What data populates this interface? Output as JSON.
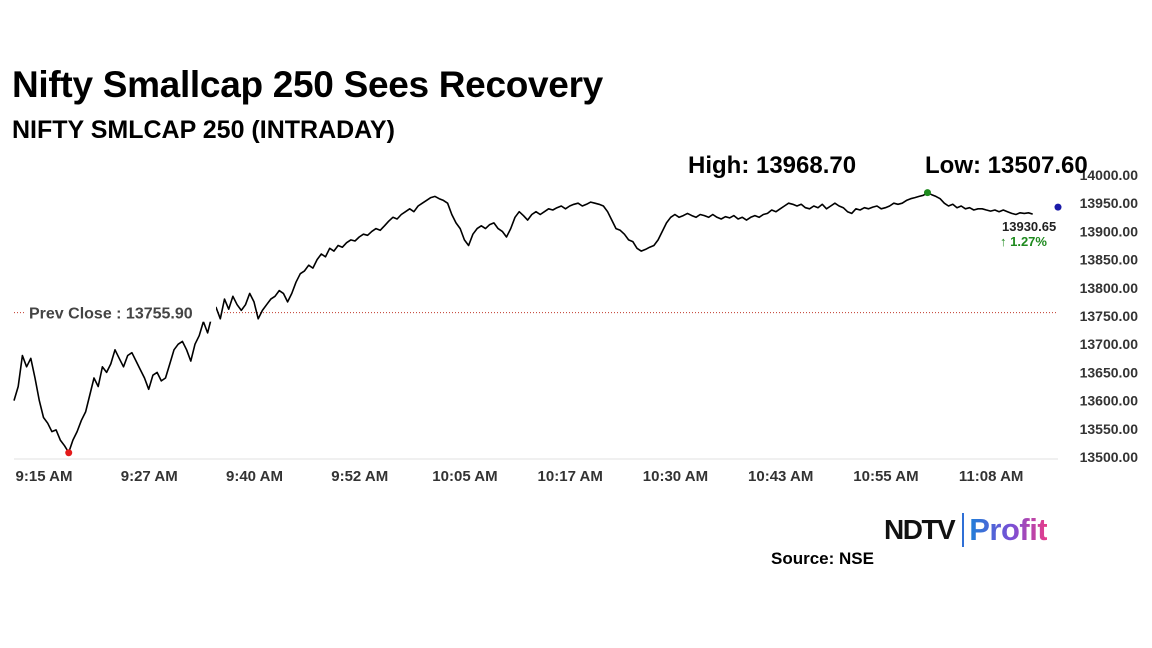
{
  "chart_data": {
    "type": "line",
    "title": "Nifty Smallcap 250 Sees Recovery",
    "subtitle": "NIFTY SMLCAP 250 (INTRADAY)",
    "high_label": "High: 13968.70",
    "low_label": "Low: 13507.60",
    "high": 13968.7,
    "low": 13507.6,
    "prev_close": 13755.9,
    "prev_close_label": "Prev Close : 13755.90",
    "last_value": 13930.65,
    "last_value_label": "13930.65",
    "change_label": "↑ 1.27%",
    "ylim": [
      13500,
      14000
    ],
    "yticks": [
      "13500.00",
      "13550.00",
      "13600.00",
      "13650.00",
      "13700.00",
      "13750.00",
      "13800.00",
      "13850.00",
      "13900.00",
      "13950.00",
      "14000.00"
    ],
    "xticks": [
      "9:15 AM",
      "9:27 AM",
      "9:40 AM",
      "9:52 AM",
      "10:05 AM",
      "10:17 AM",
      "10:30 AM",
      "10:43 AM",
      "10:55 AM",
      "11:08 AM"
    ],
    "x_start": 0,
    "x_end": 124,
    "points": [
      [
        0,
        13600
      ],
      [
        0.5,
        13625
      ],
      [
        1,
        13680
      ],
      [
        1.5,
        13660
      ],
      [
        2,
        13675
      ],
      [
        2.5,
        13640
      ],
      [
        3,
        13600
      ],
      [
        3.5,
        13570
      ],
      [
        4,
        13560
      ],
      [
        4.5,
        13545
      ],
      [
        5,
        13548
      ],
      [
        5.5,
        13530
      ],
      [
        6,
        13520
      ],
      [
        6.5,
        13508
      ],
      [
        7,
        13530
      ],
      [
        7.5,
        13545
      ],
      [
        8,
        13565
      ],
      [
        8.5,
        13580
      ],
      [
        9,
        13610
      ],
      [
        9.5,
        13640
      ],
      [
        10,
        13625
      ],
      [
        10.5,
        13660
      ],
      [
        11,
        13650
      ],
      [
        11.5,
        13665
      ],
      [
        12,
        13690
      ],
      [
        12.5,
        13675
      ],
      [
        13,
        13660
      ],
      [
        13.5,
        13680
      ],
      [
        14,
        13685
      ],
      [
        14.5,
        13670
      ],
      [
        15,
        13655
      ],
      [
        15.5,
        13640
      ],
      [
        16,
        13620
      ],
      [
        16.5,
        13645
      ],
      [
        17,
        13650
      ],
      [
        17.5,
        13635
      ],
      [
        18,
        13640
      ],
      [
        18.5,
        13665
      ],
      [
        19,
        13690
      ],
      [
        19.5,
        13700
      ],
      [
        20,
        13705
      ],
      [
        20.5,
        13690
      ],
      [
        21,
        13670
      ],
      [
        21.5,
        13700
      ],
      [
        22,
        13715
      ],
      [
        22.5,
        13740
      ],
      [
        23,
        13720
      ],
      [
        23.5,
        13750
      ],
      [
        24,
        13765
      ],
      [
        24.5,
        13745
      ],
      [
        25,
        13780
      ],
      [
        25.5,
        13762
      ],
      [
        26,
        13785
      ],
      [
        26.5,
        13770
      ],
      [
        27,
        13760
      ],
      [
        27.5,
        13770
      ],
      [
        28,
        13790
      ],
      [
        28.5,
        13775
      ],
      [
        29,
        13745
      ],
      [
        29.5,
        13760
      ],
      [
        30,
        13770
      ],
      [
        30.5,
        13780
      ],
      [
        31,
        13785
      ],
      [
        31.5,
        13795
      ],
      [
        32,
        13790
      ],
      [
        32.5,
        13775
      ],
      [
        33,
        13790
      ],
      [
        33.5,
        13810
      ],
      [
        34,
        13825
      ],
      [
        34.5,
        13830
      ],
      [
        35,
        13840
      ],
      [
        35.5,
        13835
      ],
      [
        36,
        13850
      ],
      [
        36.5,
        13860
      ],
      [
        37,
        13855
      ],
      [
        37.5,
        13870
      ],
      [
        38,
        13865
      ],
      [
        38.5,
        13875
      ],
      [
        39,
        13872
      ],
      [
        39.5,
        13880
      ],
      [
        40,
        13885
      ],
      [
        40.5,
        13883
      ],
      [
        41,
        13890
      ],
      [
        41.5,
        13895
      ],
      [
        42,
        13893
      ],
      [
        42.5,
        13900
      ],
      [
        43,
        13905
      ],
      [
        43.5,
        13902
      ],
      [
        44,
        13910
      ],
      [
        44.5,
        13918
      ],
      [
        45,
        13925
      ],
      [
        45.5,
        13922
      ],
      [
        46,
        13930
      ],
      [
        46.5,
        13935
      ],
      [
        47,
        13940
      ],
      [
        47.5,
        13935
      ],
      [
        48,
        13945
      ],
      [
        48.5,
        13950
      ],
      [
        49,
        13955
      ],
      [
        49.5,
        13960
      ],
      [
        50,
        13962
      ],
      [
        50.5,
        13958
      ],
      [
        51,
        13955
      ],
      [
        51.5,
        13950
      ],
      [
        52,
        13930
      ],
      [
        52.5,
        13915
      ],
      [
        53,
        13905
      ],
      [
        53.5,
        13885
      ],
      [
        54,
        13875
      ],
      [
        54.5,
        13895
      ],
      [
        55,
        13905
      ],
      [
        55.5,
        13910
      ],
      [
        56,
        13905
      ],
      [
        56.5,
        13912
      ],
      [
        57,
        13915
      ],
      [
        57.5,
        13905
      ],
      [
        58,
        13900
      ],
      [
        58.5,
        13890
      ],
      [
        59,
        13905
      ],
      [
        59.5,
        13925
      ],
      [
        60,
        13935
      ],
      [
        60.5,
        13928
      ],
      [
        61,
        13920
      ],
      [
        61.5,
        13930
      ],
      [
        62,
        13935
      ],
      [
        62.5,
        13930
      ],
      [
        63,
        13935
      ],
      [
        63.5,
        13940
      ],
      [
        64,
        13938
      ],
      [
        64.5,
        13942
      ],
      [
        65,
        13945
      ],
      [
        65.5,
        13940
      ],
      [
        66,
        13945
      ],
      [
        66.5,
        13948
      ],
      [
        67,
        13950
      ],
      [
        67.5,
        13945
      ],
      [
        68,
        13948
      ],
      [
        68.5,
        13952
      ],
      [
        69,
        13950
      ],
      [
        69.5,
        13948
      ],
      [
        70,
        13945
      ],
      [
        70.5,
        13935
      ],
      [
        71,
        13920
      ],
      [
        71.5,
        13905
      ],
      [
        72,
        13902
      ],
      [
        72.5,
        13895
      ],
      [
        73,
        13885
      ],
      [
        73.5,
        13882
      ],
      [
        74,
        13870
      ],
      [
        74.5,
        13865
      ],
      [
        75,
        13868
      ],
      [
        75.5,
        13872
      ],
      [
        76,
        13875
      ],
      [
        76.5,
        13885
      ],
      [
        77,
        13900
      ],
      [
        77.5,
        13915
      ],
      [
        78,
        13925
      ],
      [
        78.5,
        13930
      ],
      [
        79,
        13925
      ],
      [
        79.5,
        13928
      ],
      [
        80,
        13932
      ],
      [
        80.5,
        13928
      ],
      [
        81,
        13925
      ],
      [
        81.5,
        13930
      ],
      [
        82,
        13928
      ],
      [
        82.5,
        13925
      ],
      [
        83,
        13930
      ],
      [
        83.5,
        13925
      ],
      [
        84,
        13922
      ],
      [
        84.5,
        13926
      ],
      [
        85,
        13924
      ],
      [
        85.5,
        13928
      ],
      [
        86,
        13922
      ],
      [
        86.5,
        13925
      ],
      [
        87,
        13920
      ],
      [
        87.5,
        13925
      ],
      [
        88,
        13928
      ],
      [
        88.5,
        13925
      ],
      [
        89,
        13930
      ],
      [
        89.5,
        13932
      ],
      [
        90,
        13938
      ],
      [
        90.5,
        13935
      ],
      [
        91,
        13940
      ],
      [
        91.5,
        13945
      ],
      [
        92,
        13950
      ],
      [
        92.5,
        13948
      ],
      [
        93,
        13945
      ],
      [
        93.5,
        13948
      ],
      [
        94,
        13942
      ],
      [
        94.5,
        13940
      ],
      [
        95,
        13945
      ],
      [
        95.5,
        13942
      ],
      [
        96,
        13948
      ],
      [
        96.5,
        13940
      ],
      [
        97,
        13945
      ],
      [
        97.5,
        13950
      ],
      [
        98,
        13945
      ],
      [
        98.5,
        13942
      ],
      [
        99,
        13935
      ],
      [
        99.5,
        13932
      ],
      [
        100,
        13940
      ],
      [
        100.5,
        13938
      ],
      [
        101,
        13942
      ],
      [
        101.5,
        13940
      ],
      [
        102,
        13943
      ],
      [
        102.5,
        13945
      ],
      [
        103,
        13940
      ],
      [
        103.5,
        13942
      ],
      [
        104,
        13945
      ],
      [
        104.5,
        13950
      ],
      [
        105,
        13948
      ],
      [
        105.5,
        13950
      ],
      [
        106,
        13955
      ],
      [
        106.5,
        13958
      ],
      [
        107,
        13960
      ],
      [
        107.5,
        13962
      ],
      [
        108,
        13964
      ],
      [
        108.5,
        13968.7
      ],
      [
        109,
        13965
      ],
      [
        109.5,
        13962
      ],
      [
        110,
        13958
      ],
      [
        110.5,
        13950
      ],
      [
        111,
        13945
      ],
      [
        111.5,
        13948
      ],
      [
        112,
        13942
      ],
      [
        112.5,
        13945
      ],
      [
        113,
        13940
      ],
      [
        113.5,
        13942
      ],
      [
        114,
        13938
      ],
      [
        114.5,
        13940
      ],
      [
        115,
        13940
      ],
      [
        115.5,
        13938
      ],
      [
        116,
        13936
      ],
      [
        116.5,
        13938
      ],
      [
        117,
        13935
      ],
      [
        117.5,
        13938
      ],
      [
        118,
        13935
      ],
      [
        118.5,
        13932
      ],
      [
        119,
        13930
      ],
      [
        119.5,
        13933
      ],
      [
        120,
        13932
      ],
      [
        120.5,
        13933
      ],
      [
        121,
        13930.65
      ]
    ],
    "high_point": [
      108.5,
      13968.7
    ],
    "low_point": [
      6.5,
      13507.6
    ],
    "colors": {
      "line": "#000000",
      "prev_close_line": "#c0392b",
      "high_marker": "#1e8a1e",
      "low_marker": "#e31a1a",
      "last_marker": "#1a1aa8",
      "change": "#1e8a1e",
      "axis_text": "#333333"
    }
  },
  "branding": {
    "left": "NDTV",
    "right": "Profit"
  },
  "source": "Source: NSE"
}
